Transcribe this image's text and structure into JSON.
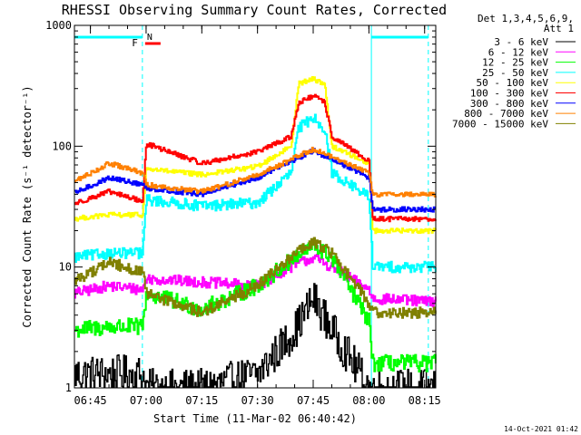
{
  "chart_data": {
    "type": "line",
    "title": "RHESSI Observing Summary Count Rates, Corrected",
    "xlabel": "Start Time (11-Mar-02 06:40:42)",
    "ylabel": "Corrected Count Rate (s⁻¹ detector⁻¹)",
    "y_scale": "log",
    "ylim": [
      1,
      1000
    ],
    "xlim": [
      "06:40:42",
      "08:18:00"
    ],
    "y_ticks": [
      {
        "value": 1,
        "label": "1"
      },
      {
        "value": 10,
        "label": "10"
      },
      {
        "value": 100,
        "label": "100"
      },
      {
        "value": 1000,
        "label": "1000"
      }
    ],
    "x_ticks": [
      {
        "value": "06:45",
        "label": "06:45"
      },
      {
        "value": "07:00",
        "label": "07:00"
      },
      {
        "value": "07:15",
        "label": "07:15"
      },
      {
        "value": "07:30",
        "label": "07:30"
      },
      {
        "value": "07:45",
        "label": "07:45"
      },
      {
        "value": "08:00",
        "label": "08:00"
      },
      {
        "value": "08:15",
        "label": "08:15"
      }
    ],
    "x_minor_step_minutes": 5,
    "legend": {
      "placement": "right",
      "header": [
        "Det 1,3,4,5,6,9,",
        "Att 1"
      ]
    },
    "series": [
      {
        "name": "3 - 6 keV",
        "color": "#000000",
        "x": [
          "06:40",
          "06:50",
          "06:59",
          "07:00",
          "07:15",
          "07:30",
          "07:40",
          "07:45",
          "07:50",
          "08:00",
          "08:01",
          "08:15",
          "08:18"
        ],
        "y": [
          1.3,
          1.3,
          1.3,
          1.0,
          1.0,
          1.3,
          3.0,
          5.5,
          3.0,
          1.0,
          1.0,
          1.0,
          1.0
        ]
      },
      {
        "name": "6 - 12 keV",
        "color": "#ff00ff",
        "x": [
          "06:40",
          "06:50",
          "06:59",
          "07:00",
          "07:15",
          "07:30",
          "07:40",
          "07:45",
          "07:50",
          "08:00",
          "08:01",
          "08:15",
          "08:18"
        ],
        "y": [
          6.0,
          7.0,
          6.5,
          8.0,
          7.5,
          7.0,
          10.5,
          12.0,
          10.0,
          6.5,
          5.5,
          5.2,
          5.2
        ]
      },
      {
        "name": "12 - 25 keV",
        "color": "#00ff00",
        "x": [
          "06:40",
          "06:50",
          "06:59",
          "07:00",
          "07:15",
          "07:30",
          "07:40",
          "07:45",
          "07:50",
          "08:00",
          "08:01",
          "08:15",
          "08:18"
        ],
        "y": [
          3.0,
          3.2,
          3.2,
          6.0,
          4.5,
          7.0,
          12.0,
          15.0,
          12.0,
          3.5,
          1.6,
          1.6,
          1.6
        ]
      },
      {
        "name": "25 - 50 keV",
        "color": "#00ffff",
        "x": [
          "06:40",
          "06:50",
          "06:59",
          "07:00",
          "07:15",
          "07:30",
          "07:39",
          "07:41",
          "07:45",
          "07:48",
          "07:50",
          "08:00",
          "08:01",
          "08:15",
          "08:18"
        ],
        "y": [
          12,
          13,
          13,
          36,
          32,
          34,
          60,
          140,
          175,
          140,
          60,
          38,
          10,
          10,
          10
        ]
      },
      {
        "name": "50 - 100 keV",
        "color": "#ffff00",
        "x": [
          "06:40",
          "06:50",
          "06:59",
          "07:00",
          "07:15",
          "07:30",
          "07:39",
          "07:41",
          "07:45",
          "07:48",
          "07:50",
          "08:00",
          "08:01",
          "08:15",
          "08:18"
        ],
        "y": [
          25,
          27,
          27,
          65,
          58,
          68,
          100,
          330,
          360,
          330,
          100,
          72,
          20,
          20,
          20
        ]
      },
      {
        "name": "100 - 300 keV",
        "color": "#ff0000",
        "x": [
          "06:40",
          "06:50",
          "06:59",
          "07:00",
          "07:15",
          "07:30",
          "07:39",
          "07:41",
          "07:45",
          "07:48",
          "07:50",
          "08:00",
          "08:01",
          "08:15",
          "08:18"
        ],
        "y": [
          33,
          42,
          35,
          105,
          72,
          90,
          120,
          230,
          260,
          230,
          120,
          75,
          25,
          25,
          25
        ]
      },
      {
        "name": "300 - 800 keV",
        "color": "#0000ff",
        "x": [
          "06:40",
          "06:50",
          "06:59",
          "07:00",
          "07:15",
          "07:30",
          "07:45",
          "08:00",
          "08:01",
          "08:15",
          "08:18"
        ],
        "y": [
          40,
          55,
          48,
          45,
          40,
          55,
          92,
          55,
          30,
          30,
          30
        ]
      },
      {
        "name": "800 - 7000 keV",
        "color": "#ff8000",
        "x": [
          "06:40",
          "06:50",
          "06:59",
          "07:00",
          "07:15",
          "07:30",
          "07:45",
          "08:00",
          "08:01",
          "08:15",
          "08:18"
        ],
        "y": [
          50,
          72,
          60,
          48,
          42,
          58,
          95,
          60,
          40,
          40,
          40
        ]
      },
      {
        "name": "7000 - 15000 keV",
        "color": "#808000",
        "x": [
          "06:40",
          "06:50",
          "06:59",
          "07:00",
          "07:15",
          "07:30",
          "07:40",
          "07:45",
          "07:50",
          "08:00",
          "08:01",
          "08:15",
          "08:18"
        ],
        "y": [
          7.5,
          11.0,
          9.0,
          6.0,
          4.2,
          7.0,
          13.0,
          16.0,
          13.0,
          5.0,
          4.2,
          4.2,
          4.2
        ]
      }
    ],
    "annotations": {
      "night_intervals": [
        [
          "06:40:42",
          "06:59:00"
        ],
        [
          "08:00:40",
          "08:16:00"
        ]
      ],
      "flag_labels": [
        "F",
        "N"
      ]
    }
  },
  "footer": {
    "timestamp": "14-Oct-2021 01:42"
  }
}
